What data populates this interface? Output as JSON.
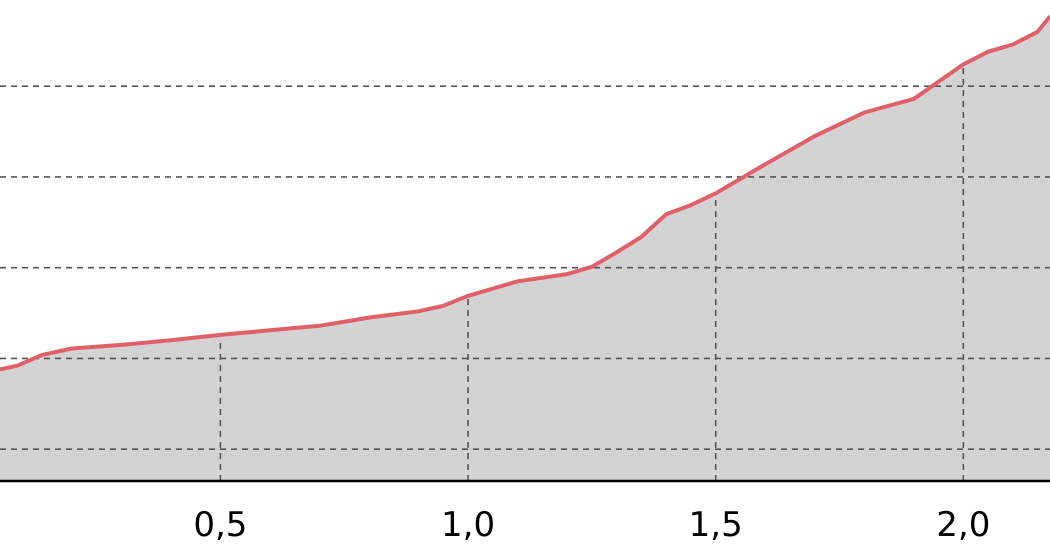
{
  "chart_data": {
    "type": "area",
    "x_tick_labels": [
      "0,5",
      "1,0",
      "1,5",
      "2,0"
    ],
    "x_ticks": [
      0.5,
      1.0,
      1.5,
      2.0
    ],
    "xlim": [
      0.055,
      2.175
    ],
    "ylim": [
      0,
      5.3
    ],
    "y_grid_levels": [
      0.35,
      1.35,
      2.35,
      3.35,
      4.35
    ],
    "grid": true,
    "series": [
      {
        "x": [
          0.055,
          0.09,
          0.14,
          0.2,
          0.3,
          0.4,
          0.5,
          0.6,
          0.7,
          0.8,
          0.9,
          0.95,
          1.0,
          1.1,
          1.2,
          1.25,
          1.3,
          1.35,
          1.4,
          1.45,
          1.5,
          1.6,
          1.7,
          1.8,
          1.9,
          2.0,
          2.05,
          2.1,
          2.15,
          2.175
        ],
        "y": [
          1.23,
          1.27,
          1.39,
          1.46,
          1.5,
          1.55,
          1.61,
          1.66,
          1.71,
          1.8,
          1.87,
          1.93,
          2.04,
          2.2,
          2.28,
          2.36,
          2.52,
          2.69,
          2.94,
          3.04,
          3.17,
          3.49,
          3.8,
          4.06,
          4.21,
          4.59,
          4.73,
          4.81,
          4.95,
          5.12
        ],
        "line_color": "#e0606a",
        "fill_color": "#d3d3d3"
      }
    ]
  }
}
